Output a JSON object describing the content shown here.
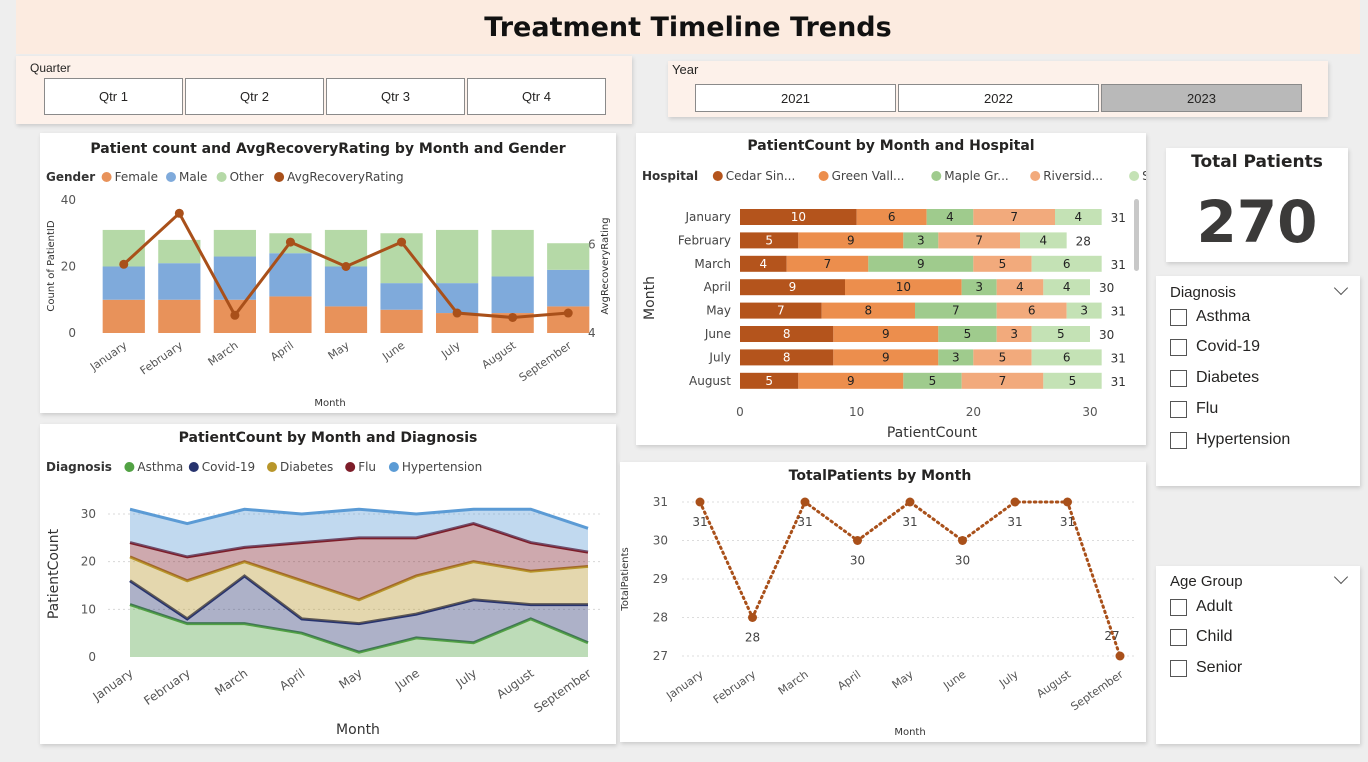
{
  "page": {
    "title": "Treatment Timeline Trends"
  },
  "quarter_slicer": {
    "label": "Quarter",
    "options": [
      "Qtr 1",
      "Qtr 2",
      "Qtr 3",
      "Qtr 4"
    ]
  },
  "year_slicer": {
    "label": "Year",
    "options": [
      "2021",
      "2022",
      "2023"
    ],
    "selected": "2023"
  },
  "kpi": {
    "label": "Total Patients",
    "value": "270"
  },
  "diagnosis_filter": {
    "label": "Diagnosis",
    "options": [
      "Asthma",
      "Covid-19",
      "Diabetes",
      "Flu",
      "Hypertension"
    ]
  },
  "age_filter": {
    "label": "Age Group",
    "options": [
      "Adult",
      "Child",
      "Senior"
    ]
  },
  "colors": {
    "female": "#e8925a",
    "male": "#7faadb",
    "other": "#b5d9a7",
    "avg_line": "#a9501a",
    "cedar": "#b4541c",
    "green_valley": "#ec8e4d",
    "maple": "#9fcb8d",
    "riverside": "#f2aa7c",
    "silver": "#c4e2b5",
    "asthma": "#52a244",
    "covid": "#27336e",
    "diabetes": "#b8962a",
    "flu": "#7d1d29",
    "hypertension": "#5b9bd5",
    "total_line": "#a9501a"
  },
  "chart_data": [
    {
      "id": "gender",
      "type": "bar",
      "stacked": true,
      "title": "Patient count and AvgRecoveryRating by Month and Gender",
      "legend_title": "Gender",
      "legend": "top-left",
      "xlabel": "Month",
      "ylabel": "Count of PatientID",
      "y2label": "AvgRecoveryRating",
      "ylim": [
        0,
        40
      ],
      "y2lim": [
        4,
        7
      ],
      "yticks": [
        0,
        20,
        40
      ],
      "y2ticks": [
        4,
        6
      ],
      "categories": [
        "January",
        "February",
        "March",
        "April",
        "May",
        "June",
        "July",
        "August",
        "September"
      ],
      "series": [
        {
          "name": "Female",
          "values": [
            10,
            10,
            10,
            11,
            8,
            7,
            6,
            6,
            8
          ]
        },
        {
          "name": "Male",
          "values": [
            10,
            11,
            13,
            13,
            12,
            8,
            9,
            11,
            11
          ]
        },
        {
          "name": "Other",
          "values": [
            11,
            7,
            8,
            6,
            11,
            15,
            16,
            14,
            8
          ]
        }
      ],
      "line": {
        "name": "AvgRecoveryRating",
        "values": [
          5.55,
          6.7,
          4.4,
          6.05,
          5.5,
          6.05,
          4.45,
          4.35,
          4.45
        ]
      }
    },
    {
      "id": "hospital",
      "type": "bar",
      "orientation": "horizontal",
      "stacked": true,
      "title": "PatientCount by Month and Hospital",
      "legend_title": "Hospital",
      "legend": "top-left",
      "xlabel": "PatientCount",
      "ylabel": "Month",
      "xlim": [
        0,
        32
      ],
      "xticks": [
        0,
        10,
        20,
        30
      ],
      "categories": [
        "January",
        "February",
        "March",
        "April",
        "May",
        "June",
        "July",
        "August"
      ],
      "series": [
        {
          "name": "Cedar Sin...",
          "values": [
            10,
            5,
            4,
            9,
            7,
            8,
            8,
            5
          ]
        },
        {
          "name": "Green Vall...",
          "values": [
            6,
            9,
            7,
            10,
            8,
            9,
            9,
            9
          ]
        },
        {
          "name": "Maple Gr...",
          "values": [
            4,
            3,
            9,
            3,
            7,
            5,
            3,
            5
          ]
        },
        {
          "name": "Riversid...",
          "values": [
            7,
            7,
            5,
            4,
            6,
            3,
            5,
            7
          ]
        },
        {
          "name": "Silver O...",
          "values": [
            4,
            4,
            6,
            4,
            3,
            5,
            6,
            5
          ]
        }
      ],
      "totals": [
        31,
        28,
        31,
        30,
        31,
        30,
        31,
        31
      ]
    },
    {
      "id": "diagnosis",
      "type": "area",
      "stacked": true,
      "title": "PatientCount by Month and Diagnosis",
      "legend_title": "Diagnosis",
      "legend": "top-left",
      "xlabel": "Month",
      "ylabel": "PatientCount",
      "ylim": [
        0,
        32
      ],
      "yticks": [
        0,
        10,
        20,
        30
      ],
      "categories": [
        "January",
        "February",
        "March",
        "April",
        "May",
        "June",
        "July",
        "August",
        "September"
      ],
      "series": [
        {
          "name": "Asthma",
          "values": [
            11,
            7,
            7,
            5,
            1,
            4,
            3,
            8,
            3
          ]
        },
        {
          "name": "Covid-19",
          "values": [
            5,
            1,
            10,
            3,
            6,
            5,
            9,
            3,
            8
          ]
        },
        {
          "name": "Diabetes",
          "values": [
            5,
            8,
            3,
            8,
            5,
            8,
            8,
            7,
            8
          ]
        },
        {
          "name": "Flu",
          "values": [
            3,
            5,
            3,
            8,
            13,
            8,
            8,
            6,
            3
          ]
        },
        {
          "name": "Hypertension",
          "values": [
            7,
            7,
            8,
            6,
            6,
            5,
            3,
            7,
            5
          ]
        }
      ]
    },
    {
      "id": "total",
      "type": "line",
      "title": "TotalPatients by Month",
      "xlabel": "Month",
      "ylabel": "TotalPatients",
      "ylim": [
        26.8,
        31.2
      ],
      "yticks": [
        27,
        28,
        29,
        30,
        31
      ],
      "categories": [
        "January",
        "February",
        "March",
        "April",
        "May",
        "June",
        "July",
        "August",
        "September"
      ],
      "values": [
        31,
        28,
        31,
        30,
        31,
        30,
        31,
        31,
        27
      ]
    }
  ]
}
